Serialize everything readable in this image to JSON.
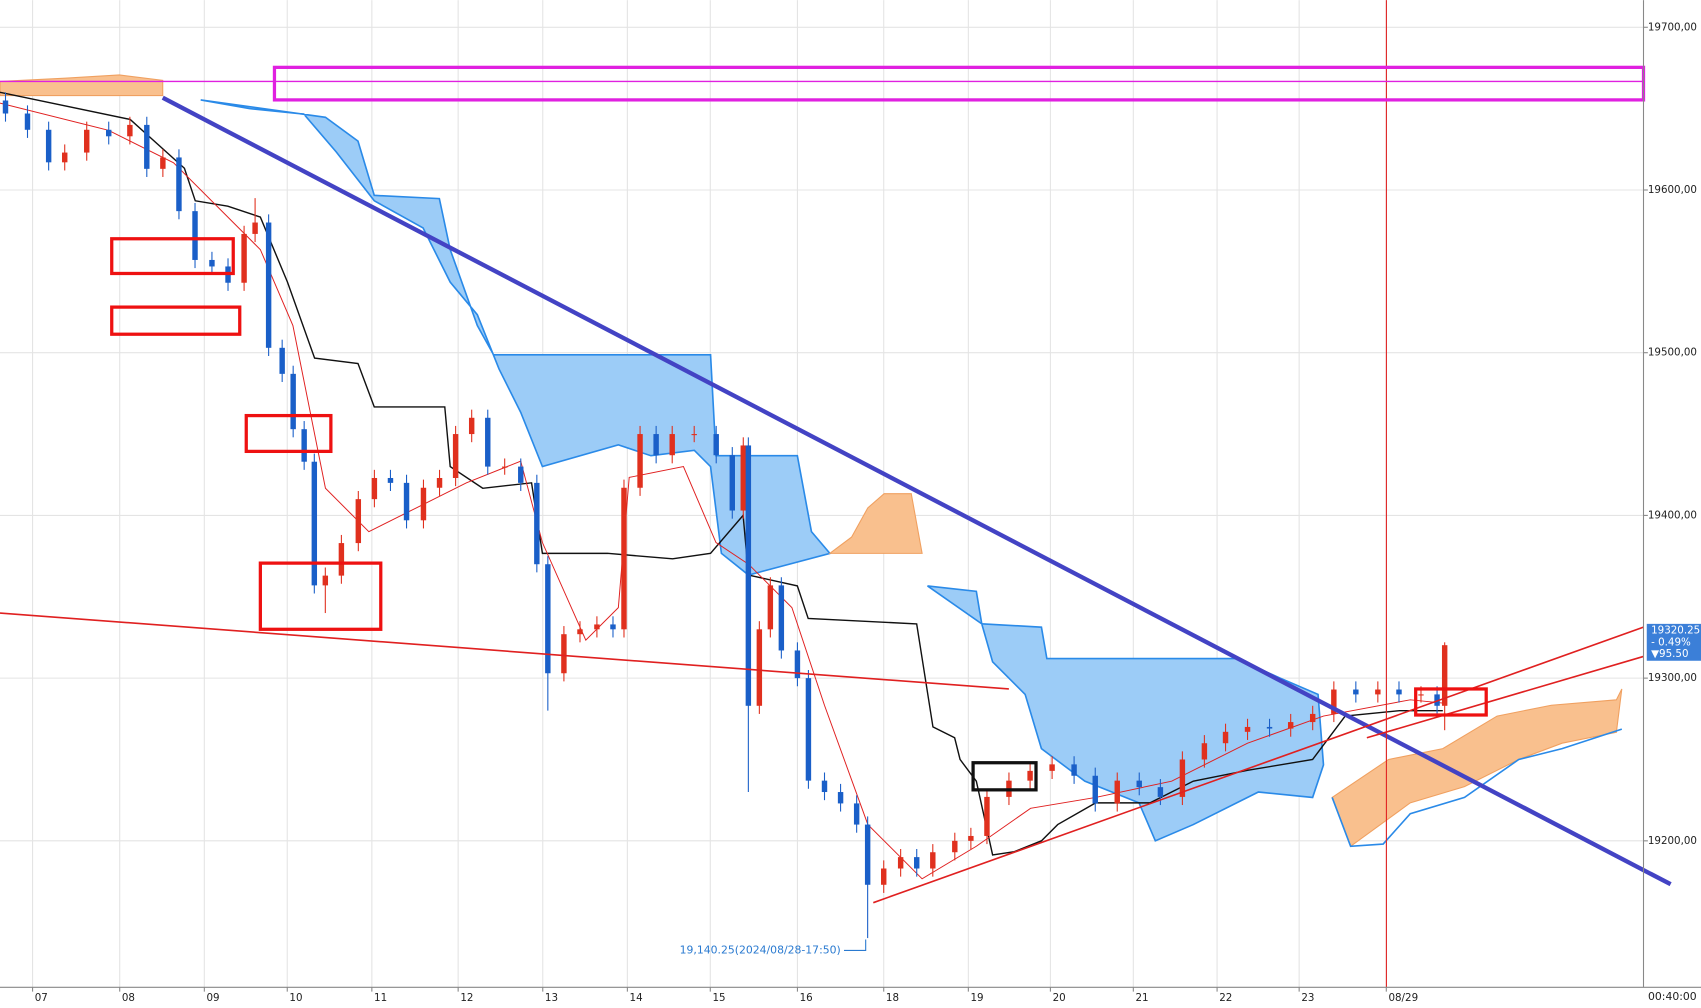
{
  "chart_data": {
    "type": "candlestick",
    "up_color": "#e0301e",
    "down_color": "#1a5fc8",
    "xlim": [
      -0.385,
      19.04
    ],
    "ylim": [
      19110,
      19716.7
    ],
    "grid": true,
    "xticks": [
      {
        "value": 0,
        "label": "07"
      },
      {
        "value": 1.03,
        "label": "08"
      },
      {
        "value": 2.03,
        "label": "09"
      },
      {
        "value": 3.01,
        "label": "10"
      },
      {
        "value": 4.01,
        "label": "11"
      },
      {
        "value": 5.03,
        "label": "12"
      },
      {
        "value": 6.03,
        "label": "13"
      },
      {
        "value": 7.03,
        "label": "14"
      },
      {
        "value": 8.01,
        "label": "15"
      },
      {
        "value": 9.04,
        "label": "16"
      },
      {
        "value": 10.06,
        "label": "18"
      },
      {
        "value": 11.06,
        "label": "19"
      },
      {
        "value": 12.03,
        "label": "20"
      },
      {
        "value": 13.01,
        "label": "21"
      },
      {
        "value": 14.0,
        "label": "22"
      },
      {
        "value": 14.97,
        "label": "23"
      },
      {
        "value": 16.0,
        "label": "08/29"
      }
    ],
    "yticks": [
      {
        "value": 19200,
        "label": "19200,00"
      },
      {
        "value": 19300,
        "label": "19300,00"
      },
      {
        "value": 19400,
        "label": "19400,00"
      },
      {
        "value": 19500,
        "label": "19500,00"
      },
      {
        "value": 19600,
        "label": "19600,00"
      },
      {
        "value": 19700,
        "label": "19700,00"
      }
    ],
    "time_label": "00:40:00",
    "low_annotation": "19,140.25(2024/08/28-17:50)",
    "last_price_label": {
      "price": "19320.25",
      "change": "- 0.49%",
      "diff": "▼95.50"
    },
    "x": [
      -0.32,
      -0.06,
      0.19,
      0.38,
      0.64,
      0.9,
      1.15,
      1.35,
      1.54,
      1.73,
      1.92,
      2.12,
      2.31,
      2.5,
      2.63,
      2.79,
      2.95,
      3.08,
      3.21,
      3.33,
      3.46,
      3.65,
      3.85,
      4.04,
      4.23,
      4.42,
      4.62,
      4.81,
      5.0,
      5.19,
      5.38,
      5.58,
      5.77,
      5.96,
      6.09,
      6.28,
      6.47,
      6.67,
      6.86,
      6.99,
      7.18,
      7.37,
      7.56,
      7.82,
      8.08,
      8.27,
      8.4,
      8.46,
      8.59,
      8.72,
      8.85,
      9.04,
      9.17,
      9.36,
      9.55,
      9.74,
      9.87,
      10.06,
      10.26,
      10.45,
      10.64,
      10.9,
      11.09,
      11.28,
      11.54,
      11.79,
      12.05,
      12.31,
      12.56,
      12.82,
      13.08,
      13.33,
      13.59,
      13.85,
      14.1,
      14.36,
      14.62,
      14.87,
      15.13,
      15.38,
      15.64,
      15.9,
      16.15,
      16.41,
      16.6,
      16.69
    ],
    "open": [
      19655,
      19647,
      19637,
      19617,
      19623,
      19637,
      19633,
      19640,
      19613,
      19620,
      19587,
      19557,
      19553,
      19543,
      19573,
      19580,
      19503,
      19487,
      19453,
      19433,
      19357,
      19363,
      19383,
      19410,
      19423,
      19420,
      19397,
      19417,
      19423,
      19450,
      19460,
      19430,
      19430,
      19420,
      19370,
      19303,
      19327,
      19330,
      19333,
      19330,
      19417,
      19450,
      19437,
      19450,
      19450,
      19437,
      19403,
      19443,
      19283,
      19330,
      19357,
      19317,
      19300,
      19237,
      19230,
      19223,
      19210,
      19173,
      19183,
      19190,
      19183,
      19193,
      19200,
      19203,
      19227,
      19237,
      19243,
      19247,
      19240,
      19223,
      19237,
      19233,
      19227,
      19250,
      19260,
      19267,
      19270,
      19269,
      19273,
      19278,
      19293,
      19290,
      19293,
      19290,
      19290,
      19283
    ],
    "high": [
      19660,
      19652,
      19642,
      19628,
      19642,
      19642,
      19645,
      19645,
      19625,
      19625,
      19592,
      19562,
      19558,
      19578,
      19595,
      19585,
      19508,
      19492,
      19458,
      19438,
      19368,
      19388,
      19415,
      19428,
      19428,
      19425,
      19422,
      19428,
      19455,
      19465,
      19465,
      19435,
      19435,
      19425,
      19375,
      19332,
      19335,
      19338,
      19338,
      19422,
      19455,
      19455,
      19455,
      19455,
      19455,
      19442,
      19448,
      19448,
      19335,
      19362,
      19362,
      19322,
      19305,
      19242,
      19235,
      19228,
      19215,
      19188,
      19195,
      19195,
      19198,
      19205,
      19208,
      19232,
      19242,
      19248,
      19252,
      19252,
      19245,
      19242,
      19242,
      19238,
      19255,
      19265,
      19272,
      19275,
      19275,
      19278,
      19283,
      19298,
      19298,
      19298,
      19298,
      19295,
      19295,
      19322
    ],
    "low": [
      19642,
      19632,
      19612,
      19612,
      19618,
      19628,
      19628,
      19608,
      19608,
      19582,
      19552,
      19548,
      19538,
      19538,
      19568,
      19498,
      19482,
      19448,
      19428,
      19352,
      19340,
      19358,
      19378,
      19405,
      19415,
      19392,
      19392,
      19412,
      19418,
      19445,
      19425,
      19425,
      19415,
      19365,
      19280,
      19298,
      19322,
      19325,
      19325,
      19325,
      19412,
      19432,
      19432,
      19445,
      19432,
      19398,
      19398,
      19230,
      19278,
      19325,
      19312,
      19295,
      19232,
      19225,
      19218,
      19205,
      19140.25,
      19168,
      19178,
      19178,
      19178,
      19188,
      19195,
      19198,
      19222,
      19232,
      19238,
      19235,
      19218,
      19218,
      19228,
      19222,
      19222,
      19245,
      19255,
      19262,
      19264,
      19264,
      19268,
      19273,
      19285,
      19285,
      19285,
      19285,
      19278,
      19268
    ],
    "close": [
      19647,
      19637,
      19617,
      19623,
      19637,
      19633,
      19640,
      19613,
      19620,
      19587,
      19557,
      19553,
      19543,
      19573,
      19580,
      19503,
      19487,
      19453,
      19433,
      19357,
      19363,
      19383,
      19410,
      19423,
      19420,
      19397,
      19417,
      19423,
      19450,
      19460,
      19430,
      19430,
      19420,
      19370,
      19303,
      19327,
      19330,
      19333,
      19330,
      19417,
      19450,
      19437,
      19450,
      19450,
      19437,
      19403,
      19443,
      19283,
      19330,
      19357,
      19317,
      19300,
      19237,
      19230,
      19223,
      19210,
      19173,
      19183,
      19190,
      19183,
      19193,
      19200,
      19203,
      19227,
      19237,
      19243,
      19247,
      19240,
      19223,
      19237,
      19233,
      19227,
      19250,
      19260,
      19267,
      19270,
      19269,
      19273,
      19278,
      19293,
      19290,
      19293,
      19290,
      19290,
      19283,
      19320.25
    ]
  }
}
